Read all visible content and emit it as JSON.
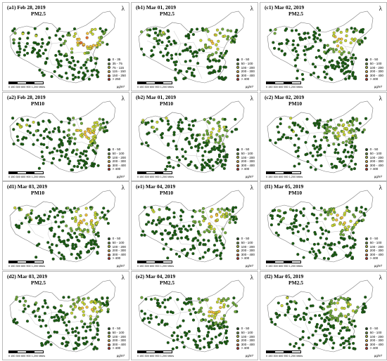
{
  "north_arrow": "north-arrow-icon",
  "scale_text": "0  150 300    600    900   1,200",
  "scale_unit": "Miles",
  "unit_label": "μg/m³",
  "colors": [
    "#1a5e12",
    "#6fa83a",
    "#c8d632",
    "#f3c23a",
    "#e8702a",
    "#d6261c"
  ],
  "legends": {
    "pm25_a1": [
      "0 - 35",
      "35 - 75",
      "75 - 115",
      "115 - 150",
      "150 - 250",
      "> 250"
    ],
    "range50": [
      "0 - 50",
      "50 - 100",
      "100 - 200",
      "200 - 300",
      "300 - 400",
      "> 400"
    ]
  },
  "panels": [
    {
      "label": "(a1) Feb 28, 2019",
      "pollutant": "PM2.5",
      "legend": "pm25_a1",
      "level": 3
    },
    {
      "label": "(b1) Mar 01, 2019",
      "pollutant": "PM2.5",
      "legend": "range50",
      "level": 2
    },
    {
      "label": "(c1) Mar 02, 2019",
      "pollutant": "PM2.5",
      "legend": "range50",
      "level": 2
    },
    {
      "label": "(a2) Feb 28, 2019",
      "pollutant": "PM10",
      "legend": "range50",
      "level": 2
    },
    {
      "label": "(b2) Mar 01, 2019",
      "pollutant": "PM10",
      "legend": "range50",
      "level": 1
    },
    {
      "label": "(c2) Mar 02, 2019",
      "pollutant": "PM10",
      "legend": "range50",
      "level": 1
    },
    {
      "label": "(d1) Mar 03, 2019",
      "pollutant": "PM10",
      "legend": "range50",
      "level": 2
    },
    {
      "label": "(e1) Mar 04, 2019",
      "pollutant": "PM10",
      "legend": "range50",
      "level": 2
    },
    {
      "label": "(f1) Mar 05, 2019",
      "pollutant": "PM10",
      "legend": "range50",
      "level": 2
    },
    {
      "label": "(d2) Mar 03, 2019",
      "pollutant": "PM2.5",
      "legend": "range50",
      "level": 2
    },
    {
      "label": "(e2) Mar 04, 2019",
      "pollutant": "PM2.5",
      "legend": "range50",
      "level": 2
    },
    {
      "label": "(f2) Mar 05, 2019",
      "pollutant": "PM2.5",
      "legend": "range50",
      "level": 1
    }
  ]
}
